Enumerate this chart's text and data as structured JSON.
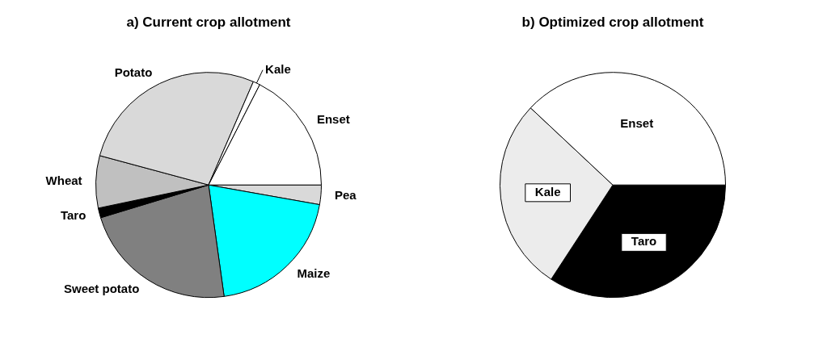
{
  "chart_data": [
    {
      "type": "pie",
      "title": "a) Current crop allotment",
      "categories": [
        "Pea",
        "Maize",
        "Sweet potato",
        "Taro",
        "Wheat",
        "Potato",
        "Kale",
        "Enset"
      ],
      "values": [
        2.8,
        20,
        22.5,
        1.4,
        7.5,
        27.3,
        1,
        17.5
      ],
      "colors": [
        "#d9d9d9",
        "#00ffff",
        "#808080",
        "#000000",
        "#c0c0c0",
        "#d9d9d9",
        "#ffffff",
        "#ffffff"
      ],
      "legend": false
    },
    {
      "type": "pie",
      "title": "b) Optimized crop allotment",
      "categories": [
        "Taro",
        "Kale",
        "Enset"
      ],
      "values": [
        34.2,
        27.8,
        38
      ],
      "colors": [
        "#000000",
        "#ececec",
        "#ffffff"
      ],
      "legend": false
    }
  ]
}
